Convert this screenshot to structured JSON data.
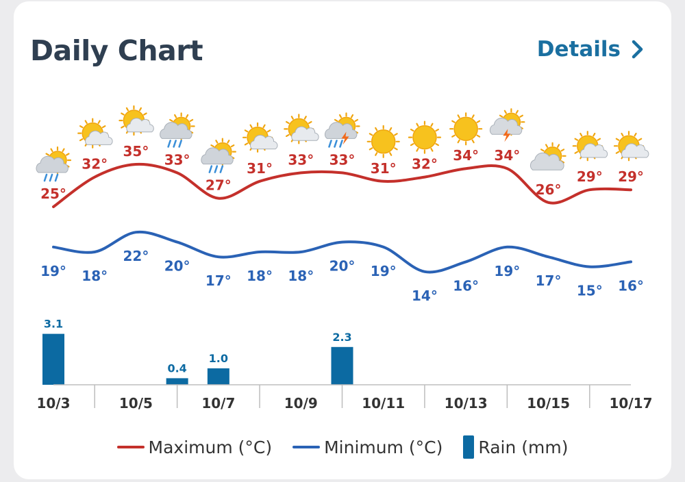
{
  "header": {
    "title": "Daily Chart",
    "details_label": "Details"
  },
  "colors": {
    "max": "#c4302b",
    "min": "#2a62b5",
    "rain": "#0c6aa2",
    "axis": "#bdbdbd",
    "tick_text": "#333333"
  },
  "chart_data": {
    "type": "line",
    "x": [
      "10/3",
      "10/4",
      "10/5",
      "10/6",
      "10/7",
      "10/8",
      "10/9",
      "10/10",
      "10/11",
      "10/12",
      "10/13",
      "10/14",
      "10/15",
      "10/16",
      "10/17"
    ],
    "x_tick_labels": [
      "10/3",
      "10/5",
      "10/7",
      "10/9",
      "10/11",
      "10/13",
      "10/15",
      "10/17"
    ],
    "weather_icons": [
      "rain-cloud-sun",
      "partly-sunny",
      "partly-sunny",
      "rain-cloud-sun",
      "rain-cloud-sun",
      "partly-sunny",
      "partly-sunny",
      "thunderstorm-rain",
      "sunny",
      "sunny",
      "sunny",
      "thunderstorm",
      "cloudy-sun",
      "partly-sunny",
      "partly-sunny"
    ],
    "series": [
      {
        "name": "Maximum (°C)",
        "values": [
          25,
          32,
          35,
          33,
          27,
          31,
          33,
          33,
          31,
          32,
          34,
          34,
          26,
          29,
          29
        ],
        "labels": [
          "25°",
          "32°",
          "35°",
          "33°",
          "27°",
          "31°",
          "33°",
          "33°",
          "31°",
          "32°",
          "34°",
          "34°",
          "26°",
          "29°",
          "29°"
        ]
      },
      {
        "name": "Minimum (°C)",
        "values": [
          19,
          18,
          22,
          20,
          17,
          18,
          18,
          20,
          19,
          14,
          16,
          19,
          17,
          15,
          16
        ],
        "labels": [
          "19°",
          "18°",
          "22°",
          "20°",
          "17°",
          "18°",
          "18°",
          "20°",
          "19°",
          "14°",
          "16°",
          "19°",
          "17°",
          "15°",
          "16°"
        ]
      }
    ],
    "rain": {
      "name": "Rain (mm)",
      "values": [
        3.1,
        0,
        0,
        0.4,
        1.0,
        0,
        0,
        2.3,
        0,
        0,
        0,
        0,
        0,
        0,
        0
      ],
      "labels": [
        "3.1",
        "",
        "",
        "0.4",
        "1.0",
        "",
        "",
        "2.3",
        "",
        "",
        "",
        "",
        "",
        "",
        ""
      ]
    },
    "legend_position": "bottom",
    "grid": false
  }
}
